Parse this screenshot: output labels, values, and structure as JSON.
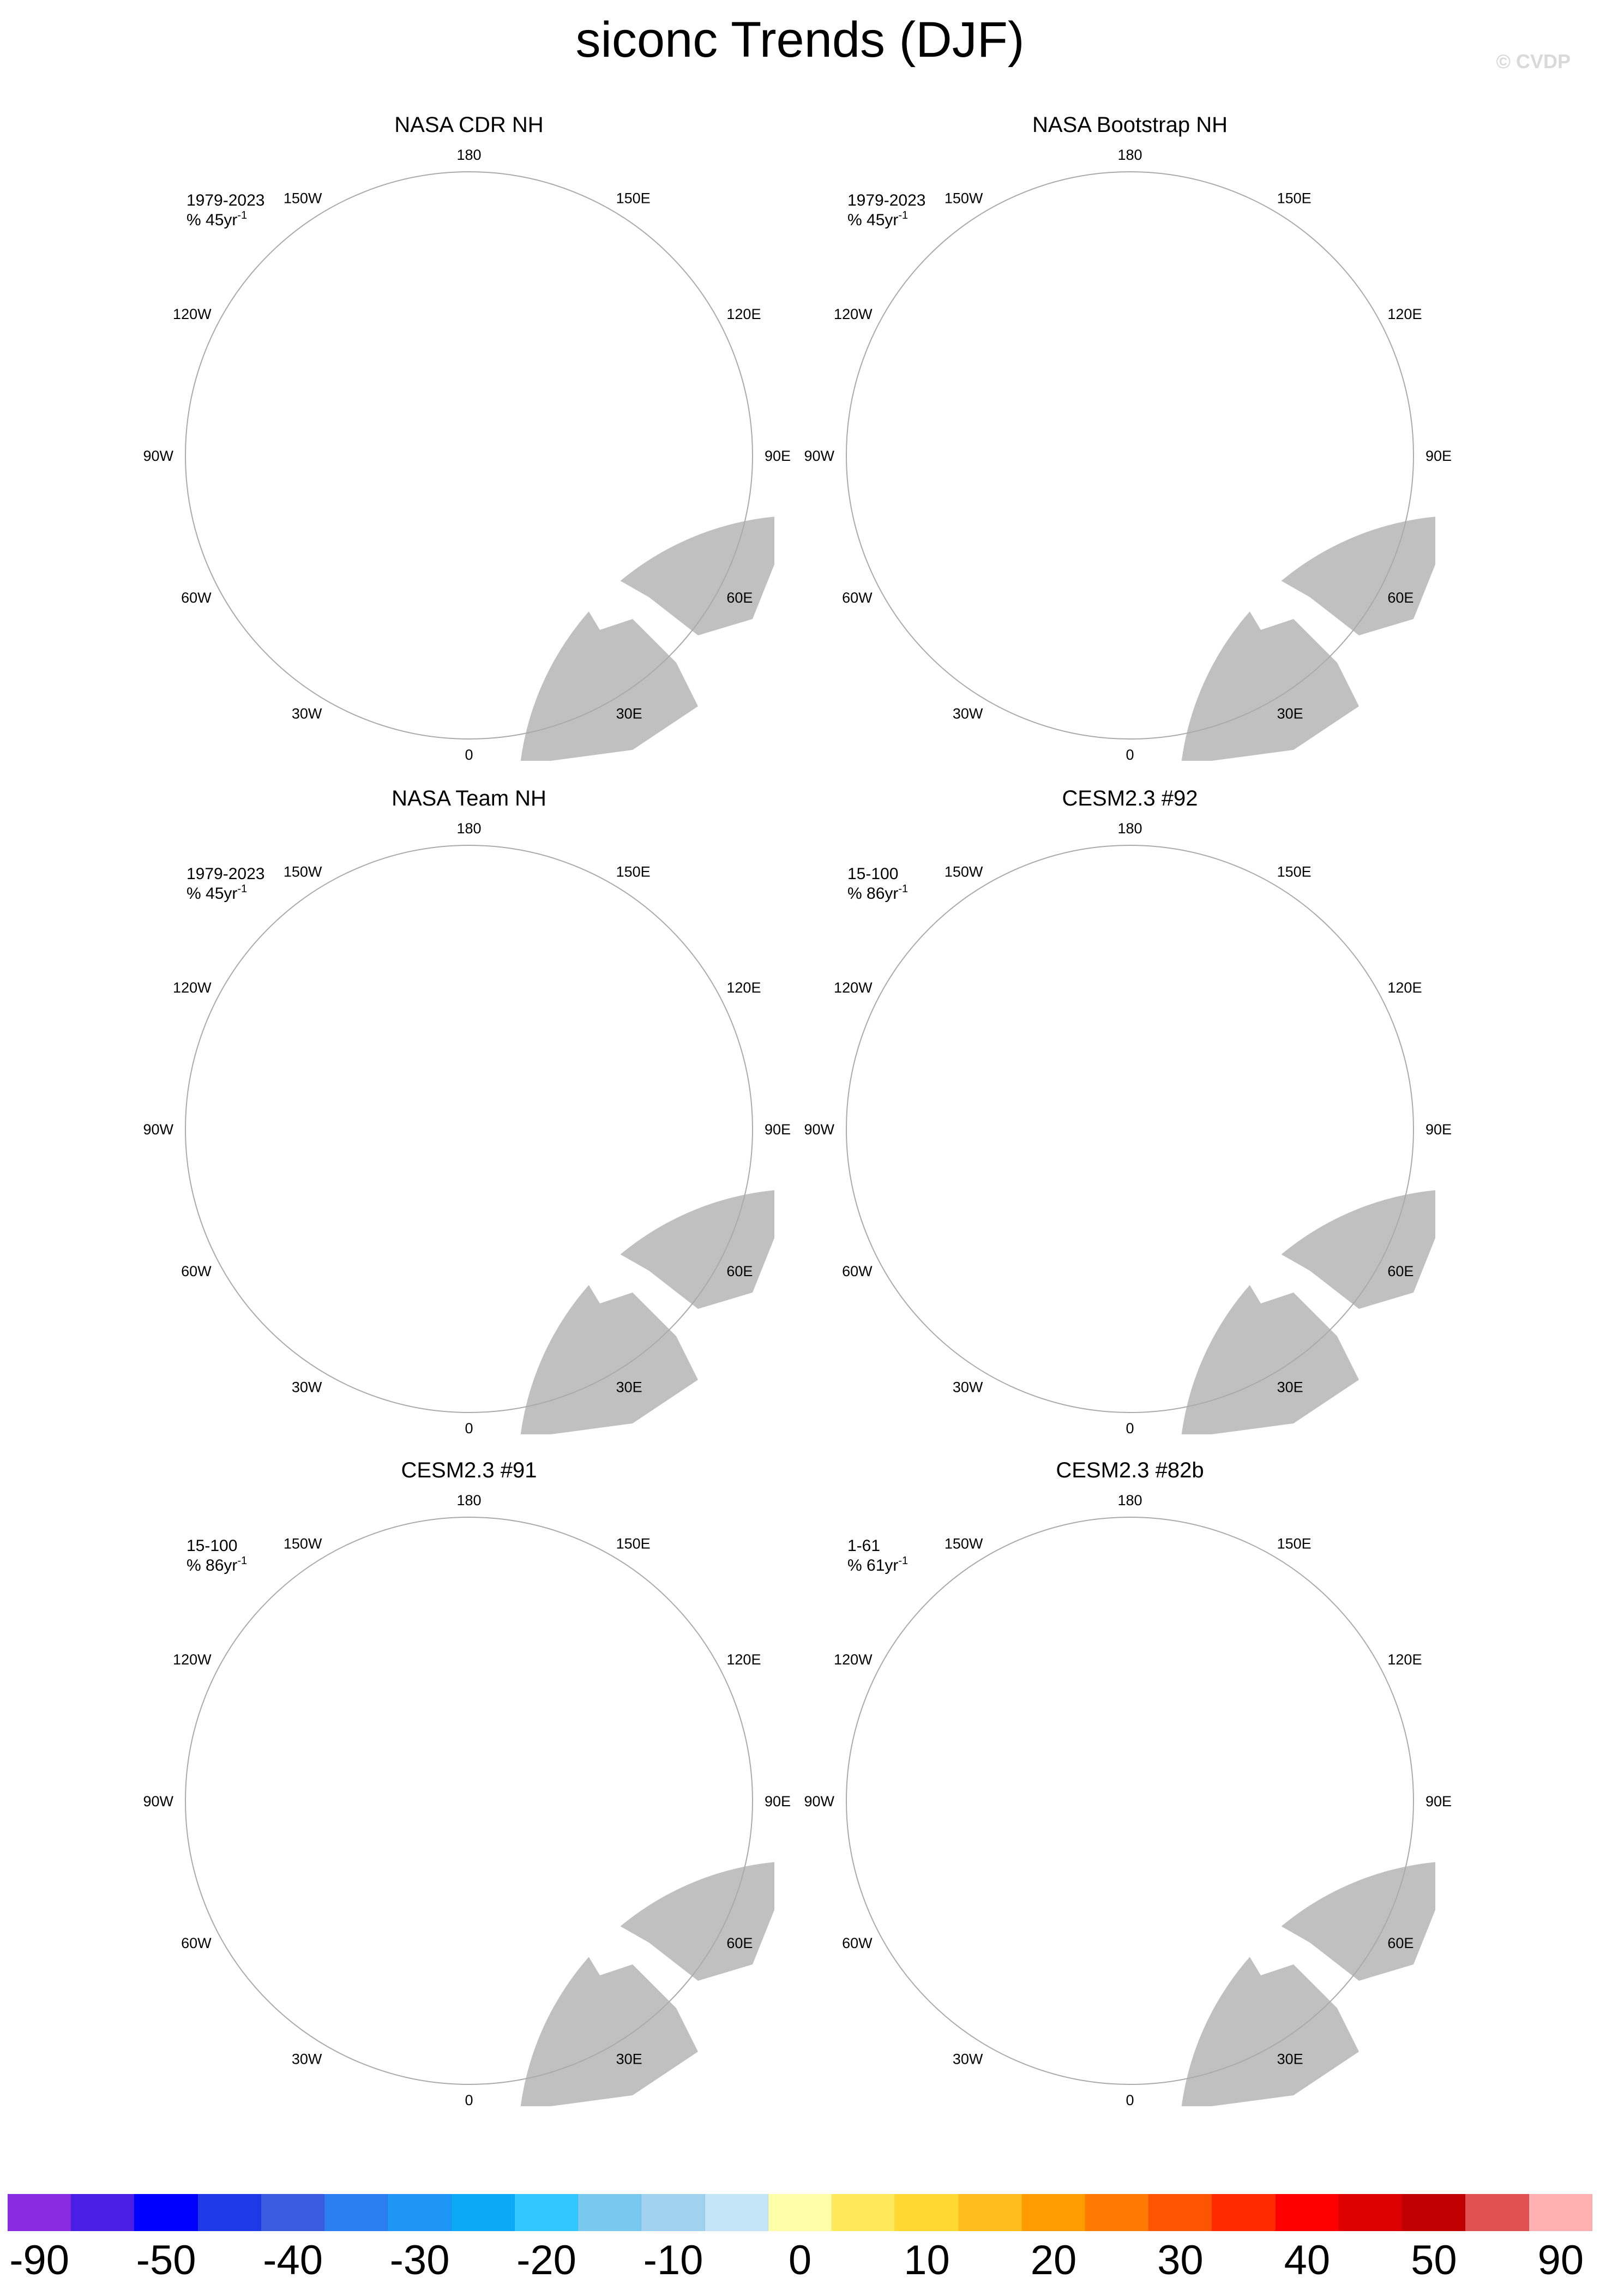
{
  "title": "siconc Trends (DJF)",
  "watermark": "© CVDP",
  "lon_labels": {
    "top": "180",
    "bottom": "0",
    "left_upper": "120W",
    "left_mid": "90W",
    "left_lower": "60W",
    "right_upper": "120E",
    "right_mid": "90E",
    "right_lower": "60E",
    "top_left": "150W",
    "top_right": "150E",
    "bottom_left": "30W",
    "bottom_right": "30E"
  },
  "panels": [
    {
      "id": "p1",
      "title": "NASA CDR NH",
      "period": "1979-2023",
      "units": "% 45yr",
      "units_exp": "-1",
      "style": "obs1"
    },
    {
      "id": "p2",
      "title": "NASA Bootstrap NH",
      "period": "1979-2023",
      "units": "% 45yr",
      "units_exp": "-1",
      "style": "obs2"
    },
    {
      "id": "p3",
      "title": "NASA Team NH",
      "period": "1979-2023",
      "units": "% 45yr",
      "units_exp": "-1",
      "style": "obs3"
    },
    {
      "id": "p4",
      "title": "CESM2.3 #92",
      "period": "15-100",
      "units": "% 86yr",
      "units_exp": "-1",
      "style": "m92"
    },
    {
      "id": "p5",
      "title": "CESM2.3 #91",
      "period": "15-100",
      "units": "% 86yr",
      "units_exp": "-1",
      "style": "m91"
    },
    {
      "id": "p6",
      "title": "CESM2.3 #82b",
      "period": "1-61",
      "units": "% 61yr",
      "units_exp": "-1",
      "style": "m82b"
    }
  ],
  "colorbar": {
    "colors": [
      "#8a2be2",
      "#4b1ee6",
      "#0000ff",
      "#1e3ae6",
      "#3a5ae0",
      "#2a7ef0",
      "#1e96f5",
      "#0aaaf5",
      "#32c8ff",
      "#78c8f0",
      "#a0d2f0",
      "#c4e4f7",
      "#ffffa8",
      "#ffe85a",
      "#ffd832",
      "#ffbe1e",
      "#ff9c00",
      "#ff7a00",
      "#ff5500",
      "#ff2a00",
      "#ff0000",
      "#dd0000",
      "#c00000",
      "#e05050",
      "#ffb0b0"
    ],
    "labels": [
      "-90",
      "-50",
      "-40",
      "-30",
      "-20",
      "-10",
      "0",
      "10",
      "20",
      "30",
      "40",
      "50",
      "90"
    ]
  },
  "palette": {
    "land": "#c0c0c0",
    "ocean": "#ffffff",
    "rim": "#aaaaaa"
  }
}
